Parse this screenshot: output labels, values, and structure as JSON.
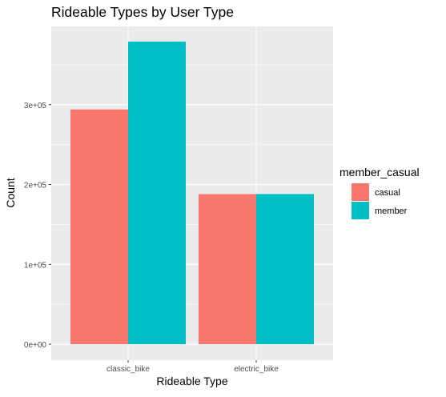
{
  "chart_data": {
    "type": "bar",
    "title": "Rideable Types by User Type",
    "xlabel": "Rideable Type",
    "ylabel": "Count",
    "categories": [
      "classic_bike",
      "electric_bike"
    ],
    "series": [
      {
        "name": "casual",
        "values": [
          294000,
          188000
        ],
        "color": "#F8766D"
      },
      {
        "name": "member",
        "values": [
          379000,
          188000
        ],
        "color": "#00BFC4"
      }
    ],
    "ylim": [
      0,
      398000
    ],
    "y_ticks": [
      0,
      100000,
      200000,
      300000
    ],
    "y_tick_labels": [
      "0e+00",
      "1e+05",
      "2e+05",
      "3e+05"
    ],
    "legend": {
      "title": "member_casual",
      "position": "right"
    },
    "grid": true
  },
  "colors": {
    "panel_background": "#EBEBEB",
    "gridline": "#FFFFFF",
    "text": "#000000",
    "tick_text": "#4D4D4D"
  }
}
